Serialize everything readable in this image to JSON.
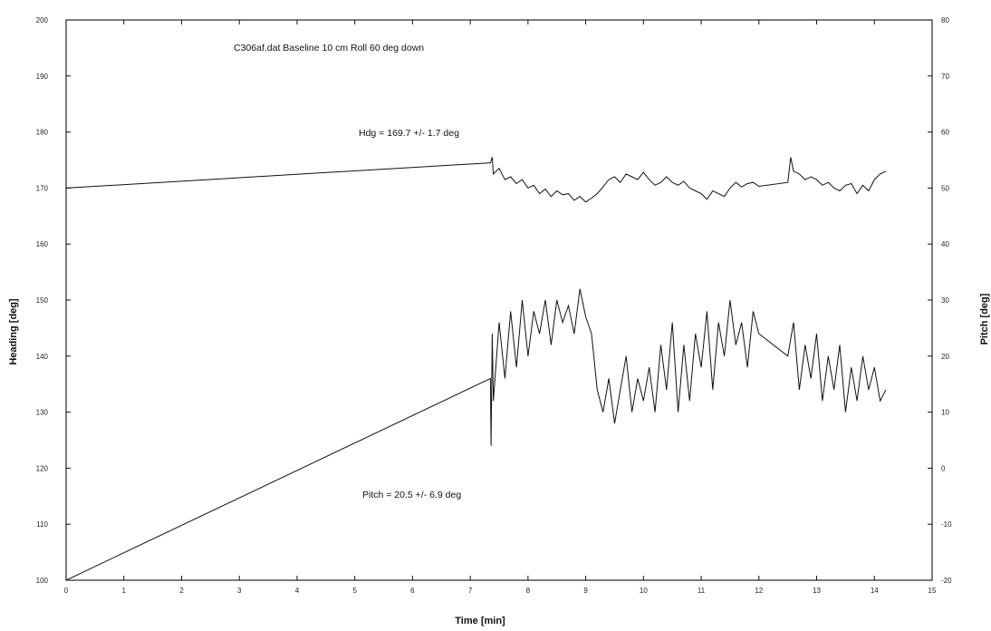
{
  "chart_data": {
    "type": "line",
    "title": "C306af.dat  Baseline 10 cm Roll 60 deg down",
    "xlabel": "Time  [min]",
    "ylabel": "Heading  [deg]",
    "y2label": "Pitch  [deg]",
    "xlim": [
      0,
      15
    ],
    "ylim": [
      100,
      200
    ],
    "y2lim": [
      -20,
      80
    ],
    "xticks": [
      0,
      1,
      2,
      3,
      4,
      5,
      6,
      7,
      8,
      9,
      10,
      11,
      12,
      13,
      14,
      15
    ],
    "yticks": [
      100,
      110,
      120,
      130,
      140,
      150,
      160,
      170,
      180,
      190,
      200
    ],
    "y2ticks": [
      -20,
      -10,
      0,
      10,
      20,
      30,
      40,
      50,
      60,
      70,
      80
    ],
    "grid": false,
    "annotations": [
      "Hdg = 169.7 +/- 1.7 deg",
      "Pitch = 20.5 +/- 6.9 deg"
    ],
    "series": [
      {
        "axis": "left",
        "x": [
          0,
          7.35,
          7.38,
          7.4,
          7.5,
          7.6,
          7.7,
          7.8,
          7.9,
          8.0,
          8.1,
          8.2,
          8.3,
          8.4,
          8.5,
          8.6,
          8.7,
          8.8,
          8.9,
          9.0,
          9.1,
          9.2,
          9.3,
          9.4,
          9.5,
          9.6,
          9.7,
          9.8,
          9.9,
          10.0,
          10.1,
          10.2,
          10.3,
          10.4,
          10.5,
          10.6,
          10.7,
          10.8,
          10.9,
          11.0,
          11.1,
          11.2,
          11.3,
          11.4,
          11.5,
          11.6,
          11.7,
          11.8,
          11.9,
          12.0,
          12.5,
          12.55,
          12.6,
          12.7,
          12.8,
          12.9,
          13.0,
          13.1,
          13.2,
          13.3,
          13.4,
          13.5,
          13.6,
          13.7,
          13.8,
          13.9,
          14.0,
          14.1,
          14.2
        ],
        "values": [
          170.0,
          174.5,
          175.5,
          172.5,
          173.5,
          171.5,
          172.0,
          170.8,
          171.5,
          170.0,
          170.5,
          169.0,
          169.8,
          168.5,
          169.5,
          168.8,
          169.0,
          167.8,
          168.5,
          167.5,
          168.2,
          169.0,
          170.2,
          171.5,
          172.0,
          171.0,
          172.5,
          172.0,
          171.5,
          172.8,
          171.5,
          170.5,
          171.0,
          172.0,
          171.0,
          170.5,
          171.2,
          170.0,
          169.5,
          169.0,
          168.0,
          169.5,
          169.0,
          168.5,
          170.0,
          171.0,
          170.2,
          170.8,
          171.0,
          170.3,
          171.0,
          175.5,
          173.0,
          172.5,
          171.5,
          172.0,
          171.5,
          170.5,
          171.0,
          170.0,
          169.5,
          170.5,
          170.8,
          169.0,
          170.5,
          169.5,
          171.5,
          172.5,
          173.0
        ]
      },
      {
        "axis": "right",
        "x": [
          0,
          7.35,
          7.36,
          7.38,
          7.4,
          7.5,
          7.6,
          7.7,
          7.8,
          7.9,
          8.0,
          8.1,
          8.2,
          8.3,
          8.4,
          8.5,
          8.6,
          8.7,
          8.8,
          8.9,
          9.0,
          9.1,
          9.2,
          9.3,
          9.4,
          9.5,
          9.6,
          9.7,
          9.8,
          9.9,
          10.0,
          10.1,
          10.2,
          10.3,
          10.4,
          10.5,
          10.6,
          10.7,
          10.8,
          10.9,
          11.0,
          11.1,
          11.2,
          11.3,
          11.4,
          11.5,
          11.6,
          11.7,
          11.8,
          11.9,
          12.0,
          12.5,
          12.6,
          12.7,
          12.8,
          12.9,
          13.0,
          13.1,
          13.2,
          13.3,
          13.4,
          13.5,
          13.6,
          13.7,
          13.8,
          13.9,
          14.0,
          14.1,
          14.2
        ],
        "values": [
          -20.0,
          16.0,
          4.0,
          24.0,
          12.0,
          26.0,
          16.0,
          28.0,
          18.0,
          30.0,
          20.0,
          28.0,
          24.0,
          30.0,
          22.0,
          30.0,
          26.0,
          29.0,
          24.0,
          32.0,
          27.0,
          24.0,
          14.0,
          10.0,
          16.0,
          8.0,
          14.0,
          20.0,
          10.0,
          16.0,
          12.0,
          18.0,
          10.0,
          22.0,
          14.0,
          26.0,
          10.0,
          22.0,
          12.0,
          24.0,
          18.0,
          28.0,
          14.0,
          26.0,
          20.0,
          30.0,
          22.0,
          26.0,
          18.0,
          28.0,
          24.0,
          20.0,
          26.0,
          14.0,
          22.0,
          16.0,
          24.0,
          12.0,
          20.0,
          14.0,
          22.0,
          10.0,
          18.0,
          12.0,
          20.0,
          14.0,
          18.0,
          12.0,
          14.0
        ]
      }
    ]
  }
}
